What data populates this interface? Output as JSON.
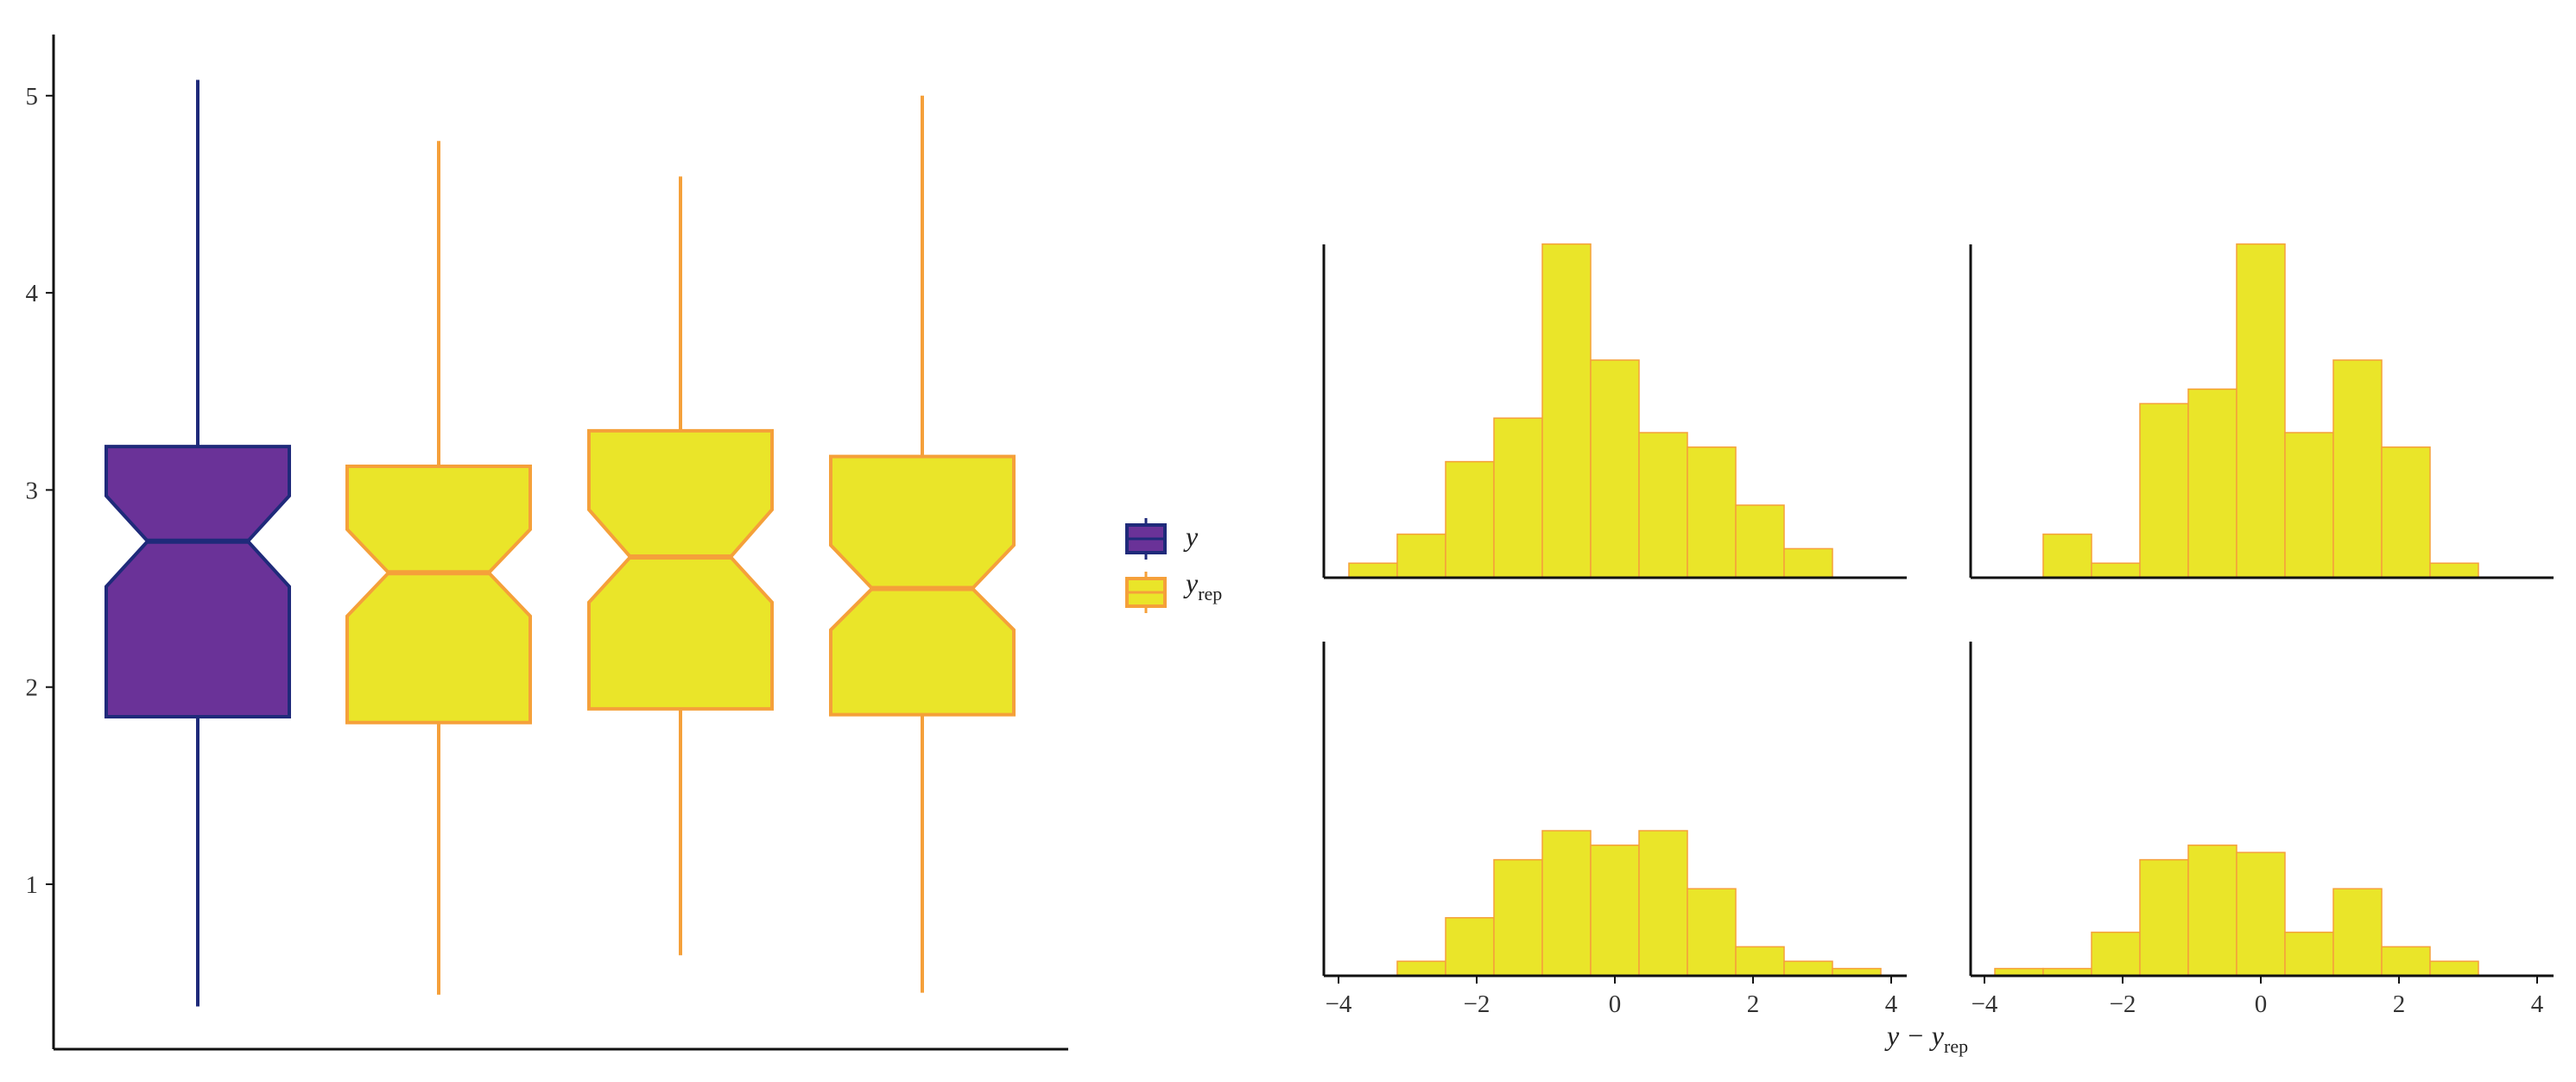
{
  "colors": {
    "y_fill": "#6a3298",
    "y_line": "#1f2a7a",
    "rep_fill": "#eae529",
    "rep_line": "#f5a03a",
    "hist_fill": "#eae529",
    "hist_line": "#f5a03a",
    "axis": "#111111",
    "tick_text": "#333333"
  },
  "legend": {
    "items": [
      {
        "key": "y",
        "label": "y",
        "sub": ""
      },
      {
        "key": "yrep",
        "label": "y",
        "sub": "rep"
      }
    ]
  },
  "chart_data": [
    {
      "type": "boxplot",
      "notched": true,
      "title": "",
      "xlabel": "",
      "ylabel": "",
      "ylim": [
        0.3,
        5.2
      ],
      "yticks": [
        "1",
        "2",
        "3",
        "4",
        "5"
      ],
      "grid": false,
      "legend_position": "right",
      "boxes": [
        {
          "series": "y",
          "min": 0.38,
          "q1": 1.85,
          "median": 2.74,
          "q3": 3.22,
          "max": 5.08,
          "notch_low": 2.51,
          "notch_high": 2.97
        },
        {
          "series": "yrep",
          "min": 0.44,
          "q1": 1.82,
          "median": 2.58,
          "q3": 3.12,
          "max": 4.77,
          "notch_low": 2.36,
          "notch_high": 2.8
        },
        {
          "series": "yrep",
          "min": 0.64,
          "q1": 1.89,
          "median": 2.66,
          "q3": 3.3,
          "max": 4.59,
          "notch_low": 2.43,
          "notch_high": 2.9
        },
        {
          "series": "yrep",
          "min": 0.45,
          "q1": 1.86,
          "median": 2.5,
          "q3": 3.17,
          "max": 5.0,
          "notch_low": 2.29,
          "notch_high": 2.72
        }
      ]
    },
    {
      "type": "bar",
      "subtype": "histogram-grid",
      "title": "",
      "xlabel": "y − y",
      "xlabel_sub": "rep",
      "ylabel": "",
      "xlim": [
        -4.3,
        4.3
      ],
      "xticks": [
        "−4",
        "−2",
        "0",
        "2",
        "4"
      ],
      "bin_start": -3.85,
      "bin_width": 0.7,
      "panels": [
        {
          "counts": [
            1,
            3,
            8,
            11,
            23,
            15,
            10,
            9,
            5,
            2
          ]
        },
        {
          "counts": [
            0,
            3,
            1,
            12,
            13,
            23,
            10,
            15,
            9,
            1
          ]
        },
        {
          "counts": [
            0,
            1,
            4,
            8,
            10,
            9,
            10,
            6,
            2,
            1,
            0.5
          ]
        },
        {
          "counts": [
            0.5,
            0.5,
            3,
            8,
            9,
            8.5,
            3,
            6,
            2,
            1
          ]
        }
      ]
    }
  ]
}
